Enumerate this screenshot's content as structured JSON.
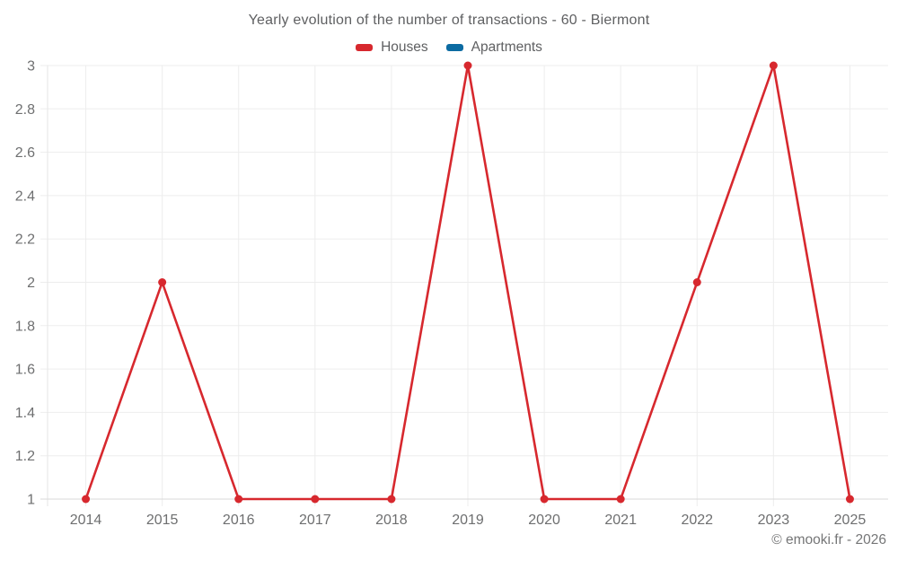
{
  "header": {
    "title": "Yearly evolution of the number of transactions - 60 - Biermont"
  },
  "legend": {
    "items": [
      {
        "label": "Houses",
        "color": "#d7282e"
      },
      {
        "label": "Apartments",
        "color": "#0c6ba2"
      }
    ]
  },
  "footer": {
    "copyright": "© emooki.fr - 2026"
  },
  "chart_data": {
    "type": "line",
    "title": "Yearly evolution of the number of transactions - 60 - Biermont",
    "categories": [
      "2014",
      "2015",
      "2016",
      "2017",
      "2018",
      "2019",
      "2020",
      "2021",
      "2022",
      "2023",
      "2025"
    ],
    "y_ticks": [
      "1",
      "1.2",
      "1.4",
      "1.6",
      "1.8",
      "2",
      "2.2",
      "2.4",
      "2.6",
      "2.8",
      "3"
    ],
    "ylim": [
      1,
      3
    ],
    "grid": true,
    "legend_position": "top",
    "xlabel": "",
    "ylabel": "",
    "series": [
      {
        "name": "Houses",
        "color": "#d7282e",
        "values": [
          1,
          2,
          1,
          1,
          1,
          3,
          1,
          1,
          2,
          3,
          1
        ]
      },
      {
        "name": "Apartments",
        "color": "#0c6ba2",
        "values": []
      }
    ],
    "style": {
      "grid_color": "#ededed",
      "axis_line_color": "#d9d9d9",
      "left_border_color": "#e6e6e6",
      "tick_text_color": "#6e6f70",
      "line_width": 2.6,
      "marker_radius": 4.5
    }
  }
}
